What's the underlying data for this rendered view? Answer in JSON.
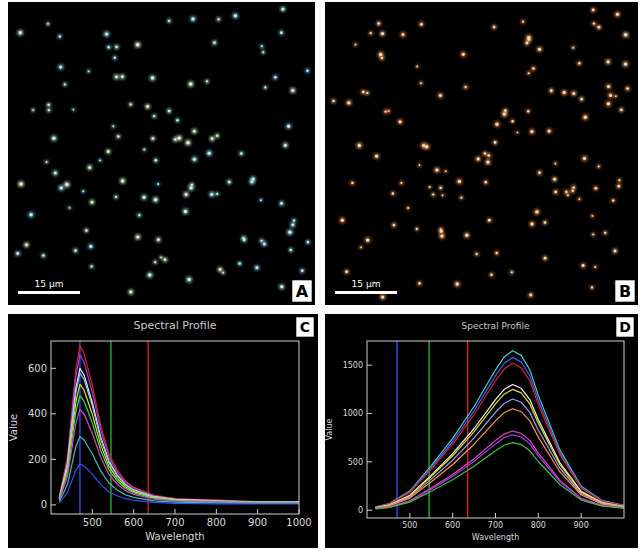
{
  "chart_data": [
    {
      "type": "image",
      "label": "A",
      "scale_bar": "15 µm",
      "color": "#8ae8e0"
    },
    {
      "type": "image",
      "label": "B",
      "scale_bar": "15 µm",
      "color": "#ff8c30"
    },
    {
      "type": "line",
      "label": "C",
      "title": "Spectral Profile",
      "x_label": "Wavelength",
      "y_label": "Value",
      "x": [
        420,
        440,
        460,
        470,
        480,
        500,
        520,
        540,
        560,
        580,
        600,
        650,
        700,
        800,
        900,
        1000
      ],
      "xlim": [
        400,
        1000
      ],
      "xticks": [
        500,
        600,
        700,
        800,
        900,
        1000
      ],
      "ylim": [
        -40,
        720
      ],
      "yticks": [
        0,
        200,
        400,
        600
      ],
      "reference_lines": [
        {
          "x": 470,
          "color": "#3050ff"
        },
        {
          "x": 545,
          "color": "#20c020"
        },
        {
          "x": 635,
          "color": "#e02020"
        }
      ],
      "series": [
        {
          "color": "#e02020",
          "values": [
            35,
            210,
            595,
            700,
            665,
            525,
            350,
            225,
            155,
            105,
            77,
            42,
            28,
            21,
            14,
            14
          ]
        },
        {
          "color": "#a040e0",
          "values": [
            33,
            198,
            561,
            660,
            627,
            495,
            330,
            211,
            145,
            99,
            73,
            40,
            26,
            20,
            13,
            13
          ]
        },
        {
          "color": "#f0f0f0",
          "values": [
            30,
            180,
            510,
            600,
            570,
            450,
            300,
            192,
            132,
            90,
            66,
            36,
            24,
            18,
            12,
            12
          ]
        },
        {
          "color": "#80c0ff",
          "values": [
            29,
            174,
            493,
            580,
            551,
            435,
            290,
            186,
            128,
            87,
            64,
            35,
            23,
            17,
            12,
            12
          ]
        },
        {
          "color": "#e0e020",
          "values": [
            27,
            159,
            450,
            530,
            504,
            398,
            265,
            170,
            117,
            80,
            58,
            32,
            21,
            16,
            11,
            11
          ]
        },
        {
          "color": "#40e040",
          "values": [
            24,
            144,
            408,
            480,
            456,
            360,
            240,
            154,
            106,
            72,
            53,
            29,
            19,
            14,
            10,
            10
          ]
        },
        {
          "color": "#e040c0",
          "values": [
            21,
            126,
            357,
            420,
            399,
            315,
            210,
            134,
            92,
            63,
            46,
            25,
            17,
            13,
            8,
            8
          ]
        },
        {
          "color": "#40c0c0",
          "values": [
            15,
            90,
            255,
            300,
            285,
            225,
            150,
            96,
            66,
            45,
            33,
            18,
            12,
            9,
            6,
            6
          ]
        },
        {
          "color": "#3050ff",
          "values": [
            9,
            54,
            153,
            180,
            171,
            135,
            90,
            58,
            40,
            27,
            20,
            11,
            7,
            5,
            4,
            4
          ]
        }
      ]
    },
    {
      "type": "line",
      "label": "D",
      "title": "Spectral Profile",
      "x_label": "Wavelength",
      "y_label": "Value",
      "x": [
        420,
        450,
        500,
        550,
        600,
        650,
        700,
        720,
        740,
        760,
        780,
        800,
        850,
        900,
        950,
        1000
      ],
      "xlim": [
        400,
        1000
      ],
      "xticks": [
        500,
        600,
        700,
        800,
        900
      ],
      "ylim": [
        -80,
        1750
      ],
      "yticks": [
        0,
        500,
        1000,
        1500
      ],
      "reference_lines": [
        {
          "x": 470,
          "color": "#3050ff"
        },
        {
          "x": 545,
          "color": "#20c020"
        },
        {
          "x": 635,
          "color": "#e02020"
        }
      ],
      "series": [
        {
          "color": "#40d0d0",
          "values": [
            33,
            66,
            198,
            462,
            743,
            1073,
            1452,
            1584,
            1650,
            1601,
            1452,
            1188,
            627,
            248,
            99,
            50
          ]
        },
        {
          "color": "#4060ff",
          "values": [
            32,
            63,
            190,
            442,
            711,
            1027,
            1390,
            1517,
            1580,
            1533,
            1390,
            1138,
            600,
            237,
            95,
            47
          ]
        },
        {
          "color": "#e02020",
          "values": [
            30,
            61,
            182,
            426,
            684,
            988,
            1338,
            1459,
            1520,
            1474,
            1338,
            1094,
            578,
            228,
            91,
            46
          ]
        },
        {
          "color": "#f0f0f0",
          "values": [
            26,
            52,
            156,
            364,
            585,
            845,
            1144,
            1248,
            1300,
            1261,
            1144,
            936,
            494,
            195,
            78,
            39
          ]
        },
        {
          "color": "#e0e020",
          "values": [
            25,
            50,
            150,
            350,
            563,
            813,
            1100,
            1200,
            1250,
            1213,
            1100,
            900,
            475,
            188,
            75,
            38
          ]
        },
        {
          "color": "#a0a0ff",
          "values": [
            23,
            46,
            138,
            322,
            518,
            748,
            1012,
            1104,
            1150,
            1116,
            1012,
            828,
            437,
            173,
            69,
            35
          ]
        },
        {
          "color": "#ff9040",
          "values": [
            21,
            42,
            126,
            294,
            473,
            683,
            924,
            1008,
            1050,
            1019,
            924,
            756,
            399,
            158,
            63,
            32
          ]
        },
        {
          "color": "#e040c0",
          "values": [
            16,
            33,
            98,
            230,
            369,
            533,
            722,
            787,
            820,
            795,
            722,
            590,
            312,
            123,
            49,
            25
          ]
        },
        {
          "color": "#a040e0",
          "values": [
            16,
            31,
            94,
            218,
            351,
            507,
            686,
            749,
            780,
            757,
            686,
            562,
            296,
            117,
            47,
            23
          ]
        },
        {
          "color": "#40c040",
          "values": [
            14,
            28,
            84,
            196,
            315,
            455,
            616,
            672,
            700,
            679,
            616,
            504,
            266,
            105,
            42,
            21
          ]
        }
      ]
    }
  ]
}
